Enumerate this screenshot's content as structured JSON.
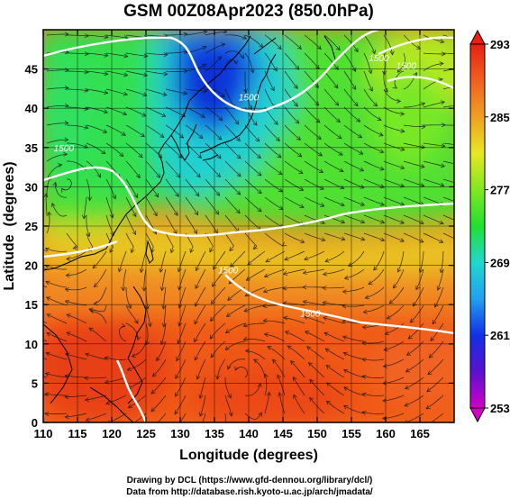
{
  "title": "GSM 00Z08Apr2023 (850.0hPa)",
  "x_axis": {
    "label": "Longitude (degrees)",
    "min": 110,
    "max": 170,
    "ticks": [
      "110",
      "115",
      "120",
      "125",
      "130",
      "135",
      "140",
      "145",
      "150",
      "155",
      "160",
      "165"
    ]
  },
  "y_axis": {
    "label": "Latitude  (degrees)",
    "min": 0,
    "max": 50,
    "ticks": [
      "0",
      "5",
      "10",
      "15",
      "20",
      "25",
      "30",
      "35",
      "40",
      "45"
    ]
  },
  "colorbar": {
    "min": 253,
    "max": 293,
    "labels": [
      "293",
      "285",
      "277",
      "269",
      "261",
      "253"
    ],
    "colors": [
      "#d400c8",
      "#5a10d0",
      "#1030e8",
      "#20a0f0",
      "#20d8d0",
      "#20e030",
      "#80e820",
      "#e8e820",
      "#f0a020",
      "#f06020",
      "#e82010"
    ]
  },
  "contour_labels": [
    {
      "text": "1500",
      "lon": 113,
      "lat": 34.5
    },
    {
      "text": "1500",
      "lon": 140,
      "lat": 41
    },
    {
      "text": "1500",
      "lon": 159,
      "lat": 46
    },
    {
      "text": "1500",
      "lon": 163,
      "lat": 45
    },
    {
      "text": "1500",
      "lon": 137,
      "lat": 19
    },
    {
      "text": "1500",
      "lon": 149,
      "lat": 13.5
    }
  ],
  "credits": [
    "Drawing by DCL (https://www.gfd-dennou.org/library/dcl/)",
    "Data from http://database.rish.kyoto-u.ac.jp/arch/jmadata/"
  ]
}
